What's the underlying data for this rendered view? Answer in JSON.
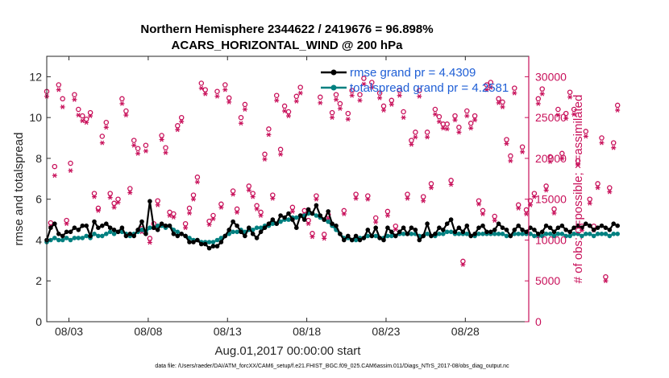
{
  "chart_data": {
    "type": "line",
    "title_line1": "Northern Hemisphere 2344622 / 2419676 = 96.898%",
    "title_line2": "ACARS_HORIZONTAL_WIND @ 200 hPa",
    "xlabel": "Aug.01,2017 00:00:00 start",
    "ylabel_left": "rmse and totalspread",
    "ylabel_right": "# of obs: o=possible; ×=assimilated",
    "footer": "data file: /Users/raeder/DAI/ATM_forcXX/CAM6_setup/f.e21.FHIST_BGC.f09_025.CAM6assim.011/Diags_NTrS_2017-08/obs_diag_output.nc",
    "xlim": [
      1.6,
      32.0
    ],
    "ylim_left": [
      0,
      13
    ],
    "ylim_right": [
      0,
      32500
    ],
    "x_ticks": [
      {
        "day": 3,
        "label": "08/03"
      },
      {
        "day": 8,
        "label": "08/08"
      },
      {
        "day": 13,
        "label": "08/13"
      },
      {
        "day": 18,
        "label": "08/18"
      },
      {
        "day": 23,
        "label": "08/23"
      },
      {
        "day": 28,
        "label": "08/28"
      }
    ],
    "y_ticks_left": [
      "0",
      "2",
      "4",
      "6",
      "8",
      "10",
      "12"
    ],
    "y_ticks_right": [
      "0",
      "5000",
      "10000",
      "15000",
      "20000",
      "25000",
      "30000"
    ],
    "legend": [
      {
        "label": "rmse grand pr = 4.4309",
        "color": "#000000"
      },
      {
        "label": "totalspread grand pr = 4.2581",
        "color": "#008080"
      }
    ],
    "colors": {
      "rmse": "#000000",
      "spread": "#008080",
      "obs": "#c8105a"
    },
    "series": [
      {
        "name": "rmse",
        "values": [
          4.0,
          4.6,
          4.8,
          4.3,
          4.2,
          4.4,
          4.4,
          4.6,
          4.5,
          4.7,
          4.7,
          4.2,
          4.9,
          4.6,
          4.7,
          4.8,
          4.6,
          4.5,
          4.4,
          4.6,
          4.2,
          4.3,
          4.2,
          4.5,
          4.9,
          4.3,
          5.9,
          4.6,
          4.5,
          4.8,
          4.7,
          4.7,
          4.3,
          4.2,
          4.3,
          4.2,
          3.9,
          3.9,
          4.0,
          3.8,
          3.8,
          3.6,
          3.7,
          3.7,
          3.9,
          4.2,
          4.5,
          4.9,
          4.7,
          4.4,
          4.2,
          4.6,
          4.3,
          4.1,
          4.4,
          4.6,
          4.8,
          5.0,
          4.8,
          5.2,
          5.1,
          5.3,
          5.0,
          4.6,
          5.2,
          5.0,
          5.5,
          5.3,
          5.7,
          5.2,
          5.0,
          5.4,
          4.8,
          4.7,
          4.3,
          4.0,
          4.2,
          4.0,
          4.2,
          4.0,
          4.1,
          4.5,
          4.2,
          4.6,
          4.1,
          4.0,
          4.6,
          4.4,
          4.2,
          4.4,
          4.6,
          4.3,
          4.6,
          4.5,
          4.0,
          4.2,
          4.8,
          4.2,
          4.3,
          4.6,
          4.5,
          4.8,
          5.0,
          4.4,
          4.6,
          4.4,
          4.7,
          4.2,
          4.3,
          4.6,
          4.7,
          4.4,
          4.4,
          4.5,
          4.8,
          4.6,
          4.5,
          4.2,
          4.5,
          4.7,
          4.5,
          4.4,
          4.6,
          4.5,
          4.3,
          4.4,
          4.7,
          4.6,
          4.4,
          4.6,
          4.7,
          4.5,
          4.4,
          4.6,
          4.7,
          4.6,
          4.8,
          4.7,
          4.5,
          4.6,
          4.7,
          4.6,
          4.5,
          4.8,
          4.7
        ]
      },
      {
        "name": "totalspread",
        "values": [
          3.9,
          4.0,
          4.1,
          4.0,
          4.0,
          4.1,
          4.0,
          4.1,
          4.1,
          4.1,
          4.2,
          4.1,
          4.3,
          4.2,
          4.2,
          4.3,
          4.4,
          4.3,
          4.4,
          4.4,
          4.3,
          4.2,
          4.3,
          4.4,
          4.5,
          4.4,
          4.6,
          4.6,
          4.7,
          4.7,
          4.6,
          4.7,
          4.5,
          4.4,
          4.3,
          4.2,
          4.1,
          4.0,
          4.0,
          3.9,
          3.9,
          3.9,
          3.9,
          4.0,
          4.1,
          4.2,
          4.3,
          4.4,
          4.4,
          4.5,
          4.4,
          4.5,
          4.5,
          4.6,
          4.6,
          4.7,
          4.7,
          4.8,
          4.8,
          4.9,
          5.0,
          5.0,
          5.1,
          5.1,
          5.2,
          5.2,
          5.3,
          5.3,
          5.2,
          5.1,
          5.0,
          4.9,
          4.7,
          4.5,
          4.3,
          4.1,
          4.1,
          4.0,
          4.0,
          4.1,
          4.1,
          4.2,
          4.2,
          4.2,
          4.1,
          4.1,
          4.2,
          4.2,
          4.2,
          4.3,
          4.3,
          4.3,
          4.3,
          4.3,
          4.2,
          4.2,
          4.3,
          4.2,
          4.2,
          4.3,
          4.3,
          4.4,
          4.4,
          4.3,
          4.3,
          4.3,
          4.3,
          4.2,
          4.2,
          4.3,
          4.3,
          4.3,
          4.3,
          4.3,
          4.3,
          4.3,
          4.2,
          4.2,
          4.3,
          4.3,
          4.3,
          4.3,
          4.3,
          4.2,
          4.2,
          4.2,
          4.3,
          4.3,
          4.2,
          4.3,
          4.3,
          4.2,
          4.2,
          4.3,
          4.3,
          4.2,
          4.3,
          4.3,
          4.2,
          4.3,
          4.3,
          4.3,
          4.2,
          4.3,
          4.3
        ]
      },
      {
        "name": "possible",
        "values": [
          28200,
          12100,
          19000,
          29000,
          27300,
          12400,
          19400,
          27800,
          26000,
          25200,
          24800,
          25600,
          15700,
          13900,
          22700,
          24400,
          15700,
          14500,
          15000,
          27300,
          25800,
          16300,
          22200,
          21200,
          11400,
          21600,
          10200,
          12000,
          14800,
          22800,
          21300,
          13400,
          13200,
          24000,
          25000,
          12000,
          13900,
          15500,
          17700,
          29200,
          28400,
          12300,
          13000,
          28200,
          14400,
          29000,
          27400,
          16000,
          13800,
          25000,
          26600,
          16600,
          15700,
          14200,
          13400,
          20500,
          23600,
          15500,
          27700,
          21100,
          26400,
          25700,
          14000,
          27600,
          28700,
          13600,
          12400,
          10800,
          15400,
          27500,
          10700,
          13100,
          25600,
          27800,
          26700,
          13600,
          25500,
          28300,
          15600,
          27800,
          29800,
          15400,
          29300,
          12700,
          28000,
          26400,
          13500,
          27100,
          11700,
          28300,
          25700,
          15600,
          22200,
          23200,
          28300,
          15300,
          23200,
          16900,
          26000,
          25100,
          24200,
          24200,
          17300,
          25200,
          23800,
          7400,
          25800,
          24300,
          25200,
          14800,
          13600,
          29000,
          29300,
          12900,
          27300,
          26900,
          22300,
          20300,
          28600,
          14300,
          21400,
          13700,
          14800,
          15700,
          27300,
          28500,
          16600,
          20200,
          13800,
          26000,
          20600,
          25500,
          28100,
          26000,
          19700,
          11700,
          23300,
          15000,
          11700,
          16900,
          22500,
          5500,
          16400,
          21900,
          26500
        ]
      },
      {
        "name": "assimilated",
        "values": [
          27600,
          11700,
          17900,
          28400,
          26300,
          12000,
          18500,
          27200,
          25300,
          24600,
          24400,
          25200,
          15300,
          13600,
          21900,
          23800,
          15200,
          14000,
          14600,
          26700,
          25300,
          15800,
          21600,
          20600,
          11000,
          20900,
          9700,
          11500,
          14300,
          22300,
          20700,
          13000,
          12800,
          23500,
          24500,
          11500,
          13300,
          15000,
          17100,
          28600,
          27900,
          11900,
          12600,
          27600,
          14000,
          28400,
          26900,
          15600,
          13400,
          24300,
          26000,
          16100,
          15300,
          13800,
          13000,
          19900,
          22900,
          15100,
          27100,
          20500,
          25800,
          25200,
          13500,
          27000,
          28000,
          13200,
          12000,
          10400,
          15000,
          26800,
          10200,
          12600,
          25000,
          27200,
          26100,
          13200,
          24800,
          27700,
          15100,
          27100,
          29100,
          15000,
          28700,
          12200,
          27400,
          25900,
          13000,
          26600,
          11300,
          27700,
          25000,
          15100,
          21700,
          22600,
          27600,
          14800,
          22600,
          16400,
          25400,
          24500,
          23700,
          23600,
          16800,
          24700,
          23200,
          7000,
          25200,
          23700,
          24700,
          14400,
          13200,
          28400,
          28700,
          12400,
          26800,
          26300,
          21800,
          19700,
          28000,
          13900,
          20800,
          13200,
          14300,
          15300,
          26700,
          27900,
          16100,
          19600,
          13300,
          25300,
          20000,
          24900,
          27500,
          25400,
          19200,
          11200,
          22700,
          14500,
          11200,
          16400,
          21900,
          5000,
          15900,
          21300,
          25900
        ]
      }
    ]
  }
}
